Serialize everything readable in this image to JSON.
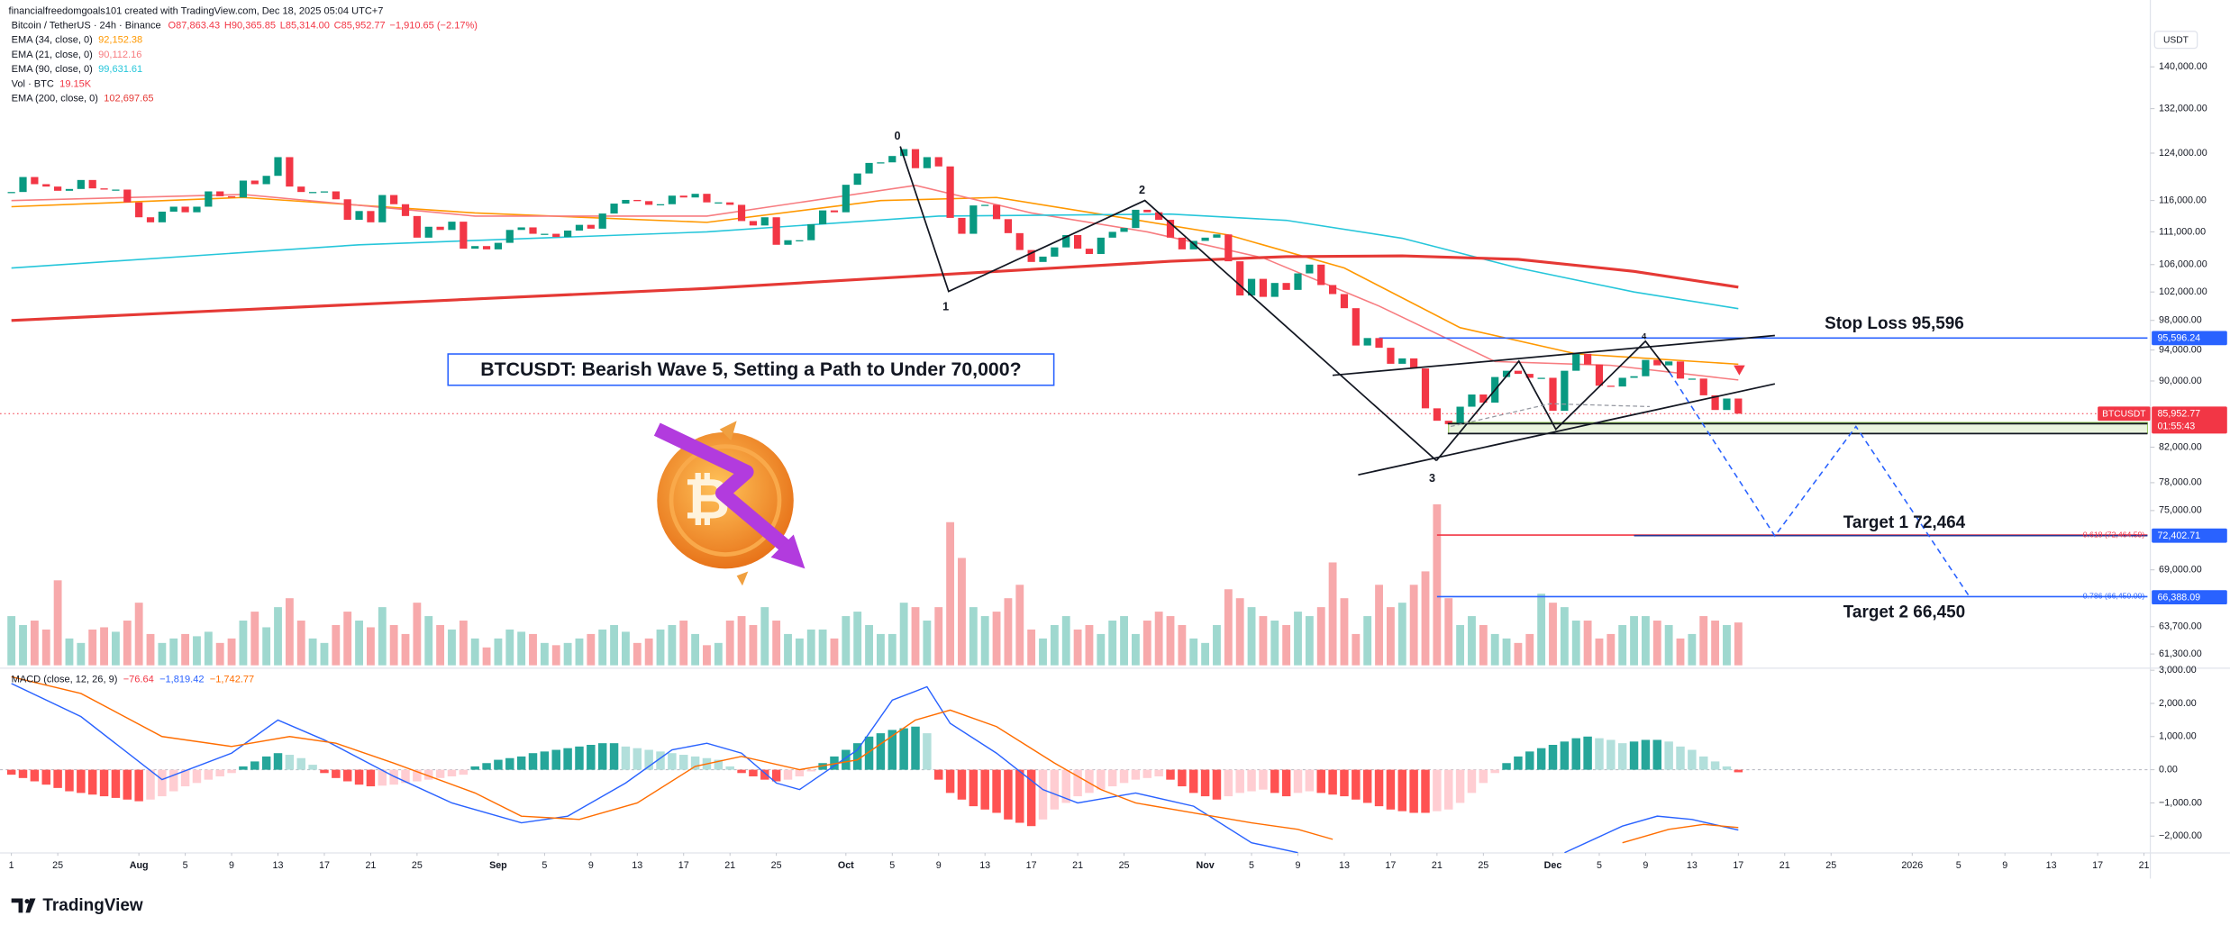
{
  "header": "financialfreedomgoals101 created with TradingView.com, Dec 18, 2025 05:04 UTC+7",
  "brand": "TradingView",
  "chart_data": {
    "type": "candlestick",
    "title": "Bitcoin / TetherUS · 24h · Binance",
    "ohlc_labels": [
      "O87,863.43",
      "H90,365.85",
      "L85,314.00",
      "C85,952.77",
      "−1,910.65 (−2.17%)"
    ],
    "currency": "USDT",
    "symbol": "BTCUSDT",
    "countdown": "01:55:43",
    "log_scale": true,
    "grid": false,
    "up_color": "#089981",
    "down_color": "#f23645",
    "first_open": 117300,
    "close": [
      117400,
      119900,
      118700,
      118300,
      117600,
      117900,
      119400,
      118000,
      117800,
      117800,
      115700,
      113300,
      112500,
      114200,
      115000,
      114100,
      115000,
      117500,
      116700,
      116500,
      119300,
      118700,
      120100,
      123300,
      118300,
      117400,
      117400,
      117500,
      116200,
      112900,
      114300,
      112500,
      116900,
      115400,
      113500,
      110100,
      111800,
      111300,
      112600,
      108400,
      108800,
      108300,
      109300,
      111300,
      111700,
      110700,
      110700,
      110200,
      111200,
      112100,
      111500,
      113900,
      115500,
      116100,
      115900,
      115300,
      115400,
      116800,
      116500,
      117100,
      115700,
      115700,
      115300,
      112700,
      112000,
      113300,
      109000,
      109700,
      109700,
      112200,
      114400,
      114100,
      118600,
      120500,
      122300,
      122400,
      123500,
      124700,
      121400,
      123300,
      121700,
      113200,
      110700,
      115200,
      115300,
      113000,
      110800,
      108200,
      106400,
      107200,
      108600,
      110500,
      108400,
      107600,
      110100,
      111000,
      111600,
      114500,
      114100,
      112900,
      110100,
      108300,
      109600,
      110100,
      110600,
      106500,
      101500,
      103900,
      101300,
      103300,
      102300,
      104700,
      106000,
      103000,
      101700,
      99700,
      94600,
      95600,
      94300,
      92200,
      92900,
      91600,
      86600,
      85100,
      84700,
      86800,
      88300,
      87300,
      90500,
      91300,
      90900,
      90400,
      90400,
      86300,
      91300,
      93500,
      92100,
      89400,
      89300,
      90400,
      90600,
      92700,
      92000,
      92500,
      90300,
      90300,
      88200,
      86400,
      87800,
      85952.77
    ],
    "xlim": [
      -0.98,
      184.3
    ],
    "xticks": [
      {
        "value": 0,
        "label": "1"
      },
      {
        "value": 4,
        "label": "25"
      },
      {
        "value": 11,
        "label": "Aug"
      },
      {
        "value": 15,
        "label": "5"
      },
      {
        "value": 19,
        "label": "9"
      },
      {
        "value": 23,
        "label": "13"
      },
      {
        "value": 27,
        "label": "17"
      },
      {
        "value": 31,
        "label": "21"
      },
      {
        "value": 35,
        "label": "25"
      },
      {
        "value": 42,
        "label": "Sep"
      },
      {
        "value": 46,
        "label": "5"
      },
      {
        "value": 50,
        "label": "9"
      },
      {
        "value": 54,
        "label": "13"
      },
      {
        "value": 58,
        "label": "17"
      },
      {
        "value": 62,
        "label": "21"
      },
      {
        "value": 66,
        "label": "25"
      },
      {
        "value": 72,
        "label": "Oct"
      },
      {
        "value": 76,
        "label": "5"
      },
      {
        "value": 80,
        "label": "9"
      },
      {
        "value": 84,
        "label": "13"
      },
      {
        "value": 88,
        "label": "17"
      },
      {
        "value": 92,
        "label": "21"
      },
      {
        "value": 96,
        "label": "25"
      },
      {
        "value": 103,
        "label": "Nov"
      },
      {
        "value": 107,
        "label": "5"
      },
      {
        "value": 111,
        "label": "9"
      },
      {
        "value": 115,
        "label": "13"
      },
      {
        "value": 119,
        "label": "17"
      },
      {
        "value": 123,
        "label": "21"
      },
      {
        "value": 127,
        "label": "25"
      },
      {
        "value": 133,
        "label": "Dec"
      },
      {
        "value": 137,
        "label": "5"
      },
      {
        "value": 141,
        "label": "9"
      },
      {
        "value": 145,
        "label": "13"
      },
      {
        "value": 149,
        "label": "17"
      },
      {
        "value": 153,
        "label": "21"
      },
      {
        "value": 157,
        "label": "25"
      },
      {
        "value": 164,
        "label": "2026"
      },
      {
        "value": 168,
        "label": "5"
      },
      {
        "value": 172,
        "label": "9"
      },
      {
        "value": 176,
        "label": "13"
      },
      {
        "value": 180,
        "label": "17"
      },
      {
        "value": 184,
        "label": "21"
      }
    ],
    "ylim": [
      60330,
      153800
    ],
    "yticks": [
      {
        "value": 140000,
        "label": "140,000.00"
      },
      {
        "value": 132000,
        "label": "132,000.00"
      },
      {
        "value": 124000,
        "label": "124,000.00"
      },
      {
        "value": 116000,
        "label": "116,000.00"
      },
      {
        "value": 111000,
        "label": "111,000.00"
      },
      {
        "value": 106000,
        "label": "106,000.00"
      },
      {
        "value": 102000,
        "label": "102,000.00"
      },
      {
        "value": 98000,
        "label": "98,000.00"
      },
      {
        "value": 94000,
        "label": "94,000.00"
      },
      {
        "value": 90000,
        "label": "90,000.00"
      },
      {
        "value": 82000,
        "label": "82,000.00"
      },
      {
        "value": 78000,
        "label": "78,000.00"
      },
      {
        "value": 75000,
        "label": "75,000.00"
      },
      {
        "value": 69000,
        "label": "69,000.00"
      },
      {
        "value": 63700,
        "label": "63,700.00"
      },
      {
        "value": 61300,
        "label": "61,300.00"
      }
    ],
    "series": [
      {
        "name": "EMA (34, close, 0)",
        "value_label": "92,152.38",
        "color": "#ff9800",
        "x": [
          0,
          20,
          40,
          60,
          75,
          85,
          95,
          105,
          115,
          125,
          135,
          149
        ],
        "values": [
          115000,
          116500,
          114000,
          112500,
          116000,
          116500,
          113500,
          110500,
          105500,
          97000,
          93500,
          92152.38
        ]
      },
      {
        "name": "EMA (21, close, 0)",
        "value_label": "90,112.16",
        "color": "#f77c80",
        "x": [
          0,
          20,
          40,
          60,
          78,
          88,
          98,
          108,
          118,
          128,
          138,
          149
        ],
        "values": [
          116000,
          117000,
          113500,
          113500,
          118500,
          114000,
          111000,
          107000,
          100000,
          92500,
          92000,
          90112.16
        ]
      },
      {
        "name": "EMA (90, close, 0)",
        "value_label": "99,631.61",
        "color": "#26c6da",
        "x": [
          0,
          30,
          60,
          80,
          100,
          110,
          120,
          130,
          140,
          149
        ],
        "values": [
          105500,
          109000,
          111000,
          113500,
          113800,
          112800,
          110000,
          105500,
          102000,
          99631.61
        ]
      },
      {
        "name": "EMA (200, close, 0)",
        "value_label": "102,697.65",
        "color": "#e53935",
        "x": [
          0,
          20,
          40,
          60,
          80,
          100,
          110,
          120,
          130,
          140,
          149
        ],
        "values": [
          98000,
          99500,
          101000,
          102500,
          104500,
          106500,
          107200,
          107300,
          106800,
          105000,
          102697.65
        ]
      }
    ],
    "volume": {
      "name": "Vol · BTC",
      "value_label": "19.15K",
      "up_color": "#9fd8cf",
      "down_color": "#f7a9ab",
      "lim": [
        0,
        75
      ],
      "values": [
        22,
        18,
        20,
        16,
        38,
        12,
        10,
        16,
        17,
        15,
        20,
        28,
        14,
        10,
        12,
        14,
        13,
        15,
        10,
        12,
        20,
        24,
        17,
        26,
        30,
        20,
        12,
        10,
        18,
        24,
        20,
        17,
        26,
        18,
        14,
        28,
        22,
        18,
        16,
        20,
        12,
        8,
        12,
        16,
        15,
        14,
        10,
        9,
        10,
        12,
        14,
        16,
        18,
        15,
        10,
        12,
        16,
        18,
        20,
        14,
        9,
        10,
        20,
        22,
        18,
        26,
        20,
        14,
        12,
        16,
        16,
        12,
        22,
        24,
        18,
        14,
        14,
        28,
        26,
        20,
        26,
        64,
        48,
        26,
        22,
        24,
        30,
        36,
        16,
        12,
        18,
        22,
        16,
        18,
        14,
        20,
        22,
        14,
        20,
        24,
        22,
        18,
        12,
        10,
        18,
        34,
        30,
        26,
        22,
        20,
        18,
        24,
        22,
        26,
        46,
        30,
        14,
        22,
        36,
        26,
        28,
        36,
        42,
        72,
        30,
        18,
        22,
        18,
        14,
        12,
        10,
        14,
        32,
        28,
        26,
        20,
        20,
        12,
        14,
        18,
        22,
        22,
        20,
        18,
        12,
        14,
        22,
        20,
        18,
        19.15
      ]
    },
    "macd": {
      "name": "MACD (close, 12, 26, 9)",
      "value_labels": [
        "−76.64",
        "−1,819.42",
        "−1,742.77"
      ],
      "label_colors": [
        "#f23645",
        "#2962ff",
        "#ff6d00"
      ],
      "hist_colors": [
        "#26a69a",
        "#b2dfdb",
        "#ff5252",
        "#ffcdd2"
      ],
      "histogram": [
        -150,
        -250,
        -350,
        -450,
        -550,
        -650,
        -700,
        -750,
        -800,
        -850,
        -900,
        -950,
        -900,
        -800,
        -650,
        -500,
        -400,
        -300,
        -200,
        -100,
        100,
        250,
        400,
        500,
        450,
        350,
        150,
        -100,
        -250,
        -350,
        -450,
        -500,
        -480,
        -450,
        -400,
        -350,
        -300,
        -250,
        -200,
        -150,
        100,
        200,
        300,
        350,
        400,
        500,
        550,
        600,
        650,
        700,
        750,
        800,
        800,
        700,
        650,
        600,
        550,
        500,
        450,
        400,
        350,
        300,
        100,
        -100,
        -200,
        -300,
        -350,
        -300,
        -200,
        -50,
        200,
        400,
        600,
        800,
        1000,
        1100,
        1200,
        1250,
        1300,
        1100,
        -300,
        -700,
        -900,
        -1100,
        -1200,
        -1300,
        -1500,
        -1600,
        -1700,
        -1500,
        -1200,
        -1000,
        -800,
        -700,
        -600,
        -500,
        -400,
        -300,
        -250,
        -200,
        -300,
        -500,
        -700,
        -800,
        -900,
        -800,
        -700,
        -650,
        -600,
        -700,
        -800,
        -700,
        -650,
        -700,
        -750,
        -800,
        -900,
        -1000,
        -1100,
        -1200,
        -1250,
        -1300,
        -1300,
        -1250,
        -1200,
        -1000,
        -700,
        -400,
        -100,
        200,
        400,
        550,
        650,
        750,
        850,
        950,
        1000,
        950,
        900,
        800,
        850,
        900,
        900,
        850,
        700,
        600,
        400,
        250,
        100,
        -76.64
      ],
      "lines": [
        {
          "color": "#2962ff",
          "x": [
            0,
            6,
            13,
            19,
            23,
            27,
            33,
            38,
            44,
            48,
            53,
            57,
            60,
            63,
            66,
            68,
            73,
            76,
            79,
            81,
            85,
            89,
            92,
            97,
            102,
            107,
            111,
            null,
            134,
            139,
            142,
            145,
            149
          ],
          "values": [
            2600,
            1600,
            -300,
            500,
            1500,
            900,
            -200,
            -1000,
            -1600,
            -1400,
            -400,
            600,
            800,
            500,
            -400,
            -600,
            600,
            2100,
            2500,
            1400,
            500,
            -600,
            -1000,
            -700,
            -1100,
            -2200,
            -2500,
            null,
            -2500,
            -1700,
            -1400,
            -1500,
            -1819.42
          ]
        },
        {
          "color": "#ff6d00",
          "x": [
            0,
            6,
            13,
            19,
            24,
            28,
            33,
            40,
            44,
            49,
            54,
            59,
            63,
            68,
            73,
            78,
            81,
            85,
            90,
            94,
            97,
            102,
            107,
            111,
            114,
            null,
            139,
            143,
            146,
            149
          ],
          "values": [
            2800,
            2300,
            1000,
            700,
            1000,
            800,
            200,
            -700,
            -1400,
            -1500,
            -1000,
            100,
            400,
            0,
            300,
            1500,
            1800,
            1300,
            200,
            -600,
            -1000,
            -1300,
            -1600,
            -1800,
            -2100,
            null,
            -2200,
            -1800,
            -1650,
            -1742.77
          ]
        }
      ],
      "ylim": [
        -2510,
        3020
      ],
      "yticks": [
        {
          "value": 3000,
          "label": "3,000.00"
        },
        {
          "value": 2000,
          "label": "2,000.00"
        },
        {
          "value": 1000,
          "label": "1,000.00"
        },
        {
          "value": 0,
          "label": "0.00"
        },
        {
          "value": -1000,
          "label": "−1,000.00"
        },
        {
          "value": -2000,
          "label": "−2,000.00"
        }
      ]
    },
    "price_tags": [
      {
        "value": 95596.24,
        "label": "95,596.24",
        "color": "#2962ff"
      },
      {
        "value": 85952.77,
        "label": "85,952.77",
        "color": "#f23645"
      },
      {
        "value": 72402.71,
        "label": "72,402.71",
        "color": "#2962ff"
      },
      {
        "value": 66388.09,
        "label": "66,388.09",
        "color": "#2962ff"
      }
    ],
    "levels": [
      {
        "value": 95596.24,
        "color": "#2962ff",
        "from": 118
      },
      {
        "value": 72464.59,
        "color": "#f23645",
        "from": 123
      },
      {
        "value": 72402.71,
        "color": "#283593",
        "from": 140
      },
      {
        "value": 66450,
        "color": "#2962ff",
        "from": 123
      }
    ],
    "fib_labels": [
      {
        "value": 72464.59,
        "label": "0.618 (72,464.59)",
        "color": "#f23645"
      },
      {
        "value": 66450,
        "label": "0.786 (66,450.00)",
        "color": "#2962ff"
      }
    ],
    "zone": {
      "low": 83600,
      "high": 84900,
      "from": 124
    },
    "annotations": {
      "headline": "BTCUSDT: Bearish Wave 5, Setting a Path to Under 70,000?",
      "stop_loss": "Stop Loss 95,596",
      "target1": "Target 1  72,464",
      "target2": "Target 2  66,450",
      "waves": [
        "0",
        "1",
        "2",
        "3",
        "4"
      ]
    }
  }
}
